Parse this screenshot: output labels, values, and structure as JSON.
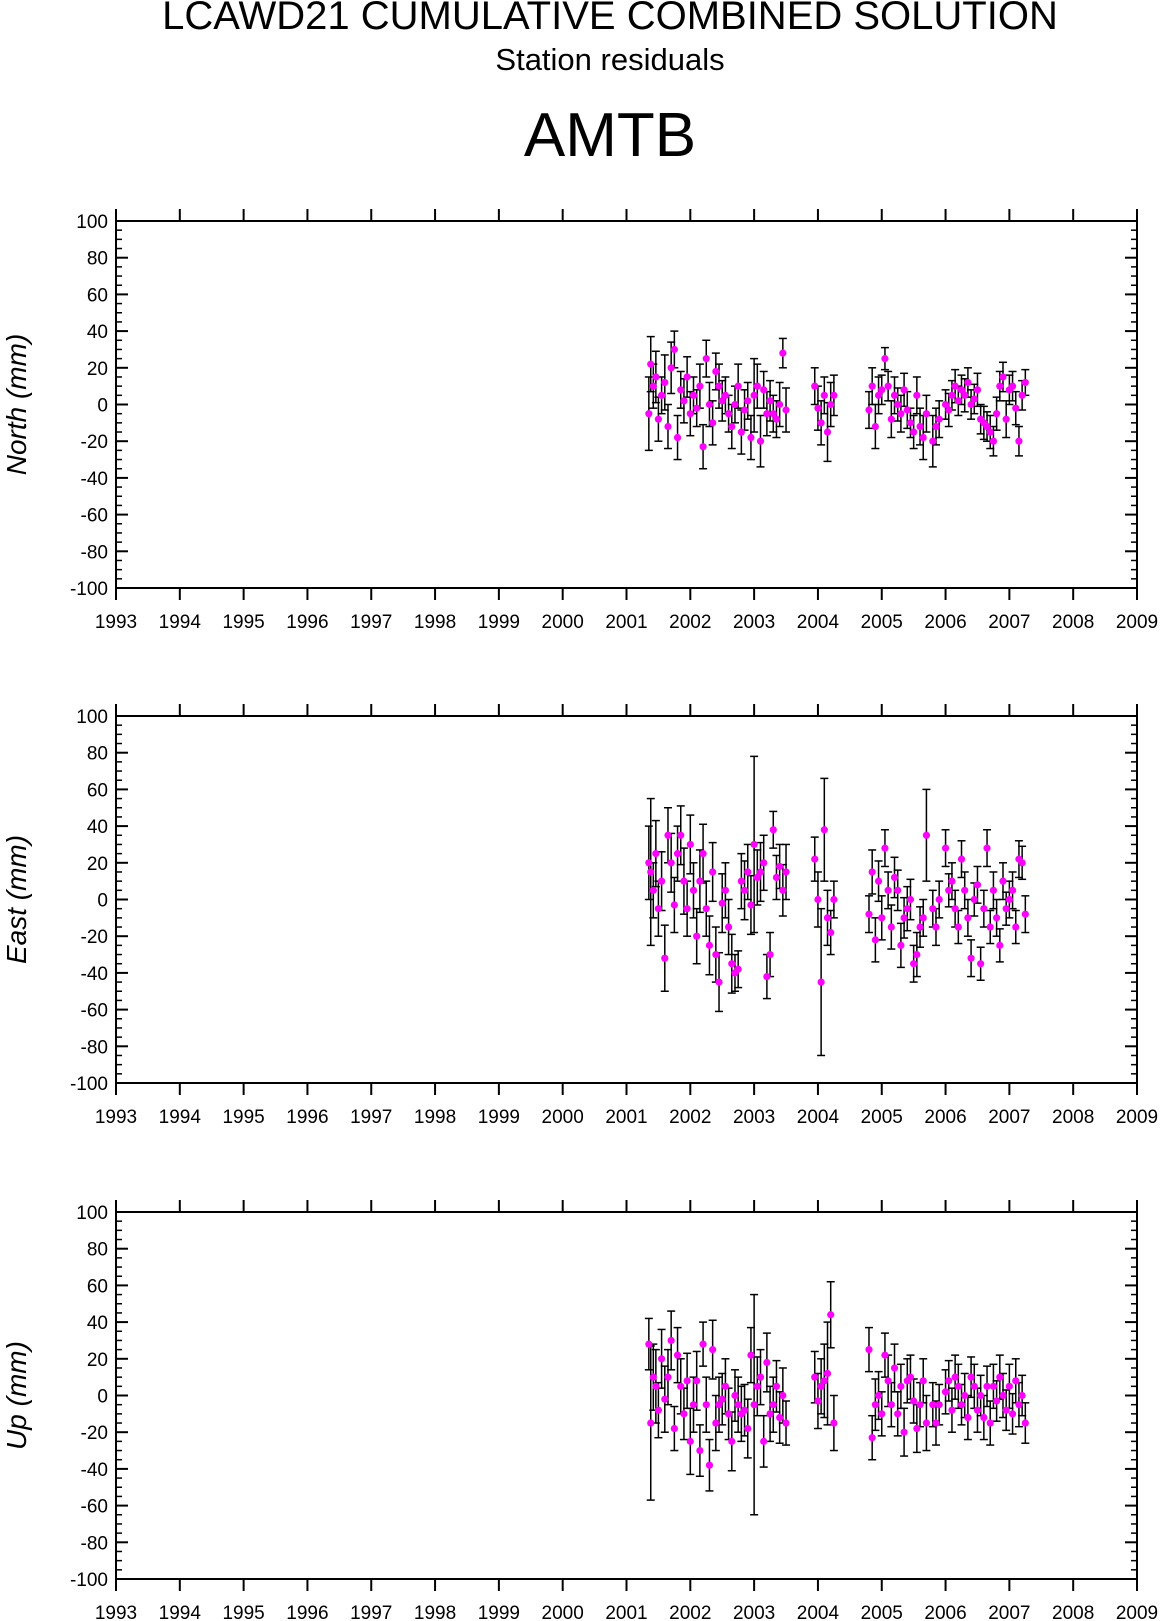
{
  "header": {
    "title": "LCAWD21 CUMULATIVE COMBINED SOLUTION",
    "subtitle": "Station residuals",
    "station": "AMTB"
  },
  "colors": {
    "point": "#ff00ff",
    "axis": "#000000",
    "errorbar": "#000000"
  },
  "chart_data": [
    {
      "type": "scatter",
      "ylabel": "North (mm)",
      "xlim": [
        1993,
        2009
      ],
      "ylim": [
        -100,
        100
      ],
      "xticks": [
        "1993",
        "1994",
        "1995",
        "1996",
        "1997",
        "1998",
        "1999",
        "2000",
        "2001",
        "2002",
        "2003",
        "2004",
        "2005",
        "2006",
        "2007",
        "2008",
        "2009"
      ],
      "yticks": [
        "100",
        "80",
        "60",
        "40",
        "20",
        "0",
        "-20",
        "-40",
        "-60",
        "-80",
        "-100"
      ],
      "series": [
        {
          "error_bars": true,
          "x": [
            2001.35,
            2001.38,
            2001.42,
            2001.46,
            2001.5,
            2001.55,
            2001.6,
            2001.65,
            2001.7,
            2001.75,
            2001.8,
            2001.85,
            2001.9,
            2001.95,
            2002.0,
            2002.05,
            2002.1,
            2002.15,
            2002.2,
            2002.25,
            2002.3,
            2002.35,
            2002.4,
            2002.45,
            2002.5,
            2002.55,
            2002.6,
            2002.65,
            2002.7,
            2002.75,
            2002.8,
            2002.85,
            2002.9,
            2002.95,
            2003.0,
            2003.05,
            2003.1,
            2003.15,
            2003.2,
            2003.25,
            2003.3,
            2003.35,
            2003.4,
            2003.45,
            2003.5,
            2003.95,
            2004.0,
            2004.05,
            2004.1,
            2004.15,
            2004.2,
            2004.25,
            2004.8,
            2004.85,
            2004.9,
            2004.95,
            2005.0,
            2005.05,
            2005.1,
            2005.15,
            2005.2,
            2005.25,
            2005.3,
            2005.35,
            2005.4,
            2005.45,
            2005.5,
            2005.55,
            2005.6,
            2005.65,
            2005.7,
            2005.8,
            2005.85,
            2005.9,
            2006.0,
            2006.05,
            2006.1,
            2006.15,
            2006.2,
            2006.25,
            2006.3,
            2006.35,
            2006.4,
            2006.45,
            2006.5,
            2006.55,
            2006.6,
            2006.65,
            2006.7,
            2006.75,
            2006.8,
            2006.85,
            2006.9,
            2006.95,
            2007.0,
            2007.05,
            2007.1,
            2007.15,
            2007.2,
            2007.25
          ],
          "y": [
            -5,
            22,
            10,
            15,
            -8,
            5,
            12,
            -12,
            20,
            30,
            -18,
            8,
            2,
            15,
            -5,
            5,
            -2,
            10,
            -23,
            25,
            0,
            -10,
            18,
            10,
            2,
            5,
            -5,
            -12,
            0,
            10,
            -15,
            -3,
            2,
            -18,
            5,
            10,
            -20,
            8,
            -5,
            2,
            -5,
            -8,
            0,
            28,
            -3,
            10,
            -2,
            -10,
            5,
            -15,
            0,
            5,
            -3,
            10,
            -12,
            5,
            8,
            25,
            10,
            -8,
            5,
            0,
            -5,
            8,
            -3,
            -10,
            -15,
            5,
            -12,
            -18,
            -5,
            -20,
            -12,
            -8,
            0,
            -3,
            5,
            10,
            2,
            8,
            5,
            12,
            0,
            3,
            8,
            -8,
            -10,
            -12,
            -15,
            -20,
            -5,
            10,
            15,
            -8,
            8,
            10,
            -2,
            -20,
            5,
            12
          ],
          "err": [
            20,
            15,
            12,
            14,
            12,
            10,
            15,
            12,
            14,
            10,
            12,
            10,
            12,
            11,
            12,
            10,
            10,
            12,
            12,
            10,
            12,
            12,
            10,
            12,
            11,
            10,
            10,
            12,
            10,
            12,
            12,
            11,
            10,
            12,
            20,
            12,
            14,
            10,
            12,
            11,
            10,
            10,
            12,
            8,
            12,
            10,
            12,
            12,
            10,
            16,
            12,
            11,
            10,
            10,
            12,
            10,
            8,
            6,
            8,
            10,
            10,
            9,
            10,
            9,
            10,
            8,
            9,
            10,
            10,
            12,
            10,
            14,
            10,
            10,
            8,
            9,
            8,
            9,
            8,
            8,
            9,
            8,
            8,
            8,
            9,
            8,
            9,
            8,
            9,
            8,
            9,
            8,
            8,
            10,
            8,
            8,
            9,
            8,
            8,
            7
          ]
        }
      ]
    },
    {
      "type": "scatter",
      "ylabel": "East (mm)",
      "xlim": [
        1993,
        2009
      ],
      "ylim": [
        -100,
        100
      ],
      "xticks": [
        "1993",
        "1994",
        "1995",
        "1996",
        "1997",
        "1998",
        "1999",
        "2000",
        "2001",
        "2002",
        "2003",
        "2004",
        "2005",
        "2006",
        "2007",
        "2008",
        "2009"
      ],
      "yticks": [
        "100",
        "80",
        "60",
        "40",
        "20",
        "0",
        "-20",
        "-40",
        "-60",
        "-80",
        "-100"
      ],
      "series": [
        {
          "error_bars": true,
          "x": [
            2001.35,
            2001.38,
            2001.42,
            2001.46,
            2001.5,
            2001.55,
            2001.6,
            2001.65,
            2001.7,
            2001.75,
            2001.8,
            2001.85,
            2001.9,
            2001.95,
            2002.0,
            2002.05,
            2002.1,
            2002.15,
            2002.2,
            2002.25,
            2002.3,
            2002.35,
            2002.4,
            2002.45,
            2002.5,
            2002.55,
            2002.6,
            2002.65,
            2002.7,
            2002.75,
            2002.8,
            2002.85,
            2002.9,
            2002.95,
            2003.0,
            2003.05,
            2003.1,
            2003.15,
            2003.2,
            2003.25,
            2003.3,
            2003.35,
            2003.4,
            2003.45,
            2003.5,
            2003.95,
            2004.0,
            2004.05,
            2004.1,
            2004.15,
            2004.2,
            2004.25,
            2004.8,
            2004.85,
            2004.9,
            2004.95,
            2005.0,
            2005.05,
            2005.1,
            2005.15,
            2005.2,
            2005.25,
            2005.3,
            2005.35,
            2005.4,
            2005.45,
            2005.5,
            2005.55,
            2005.6,
            2005.65,
            2005.7,
            2005.8,
            2005.85,
            2005.9,
            2006.0,
            2006.05,
            2006.1,
            2006.15,
            2006.2,
            2006.25,
            2006.3,
            2006.35,
            2006.4,
            2006.45,
            2006.5,
            2006.55,
            2006.6,
            2006.65,
            2006.7,
            2006.75,
            2006.8,
            2006.85,
            2006.9,
            2006.95,
            2007.0,
            2007.05,
            2007.1,
            2007.15,
            2007.2,
            2007.25
          ],
          "y": [
            20,
            15,
            5,
            25,
            -5,
            10,
            -32,
            35,
            20,
            -3,
            25,
            35,
            10,
            -5,
            30,
            5,
            -20,
            10,
            25,
            -5,
            -25,
            15,
            -30,
            -45,
            -2,
            5,
            -15,
            -35,
            -40,
            -38,
            10,
            5,
            15,
            -3,
            30,
            12,
            15,
            20,
            -42,
            -30,
            38,
            12,
            18,
            5,
            15,
            22,
            0,
            -45,
            38,
            -10,
            -18,
            0,
            -8,
            15,
            -22,
            10,
            -10,
            28,
            5,
            -15,
            12,
            5,
            -25,
            -10,
            -5,
            0,
            -35,
            -30,
            -15,
            -10,
            35,
            -5,
            -15,
            0,
            28,
            5,
            10,
            -5,
            -15,
            22,
            5,
            -10,
            -32,
            0,
            8,
            -35,
            -5,
            28,
            -15,
            5,
            -10,
            -25,
            10,
            -5,
            0,
            5,
            -15,
            22,
            20,
            -8
          ],
          "err": [
            20,
            40,
            15,
            18,
            15,
            16,
            18,
            15,
            16,
            15,
            15,
            16,
            18,
            15,
            16,
            15,
            15,
            17,
            16,
            15,
            16,
            16,
            15,
            16,
            16,
            15,
            15,
            16,
            10,
            10,
            15,
            16,
            15,
            16,
            48,
            15,
            16,
            15,
            12,
            12,
            10,
            12,
            12,
            14,
            15,
            12,
            15,
            40,
            28,
            15,
            12,
            10,
            10,
            12,
            12,
            11,
            12,
            10,
            10,
            12,
            11,
            11,
            12,
            11,
            12,
            11,
            10,
            12,
            11,
            10,
            25,
            10,
            10,
            10,
            10,
            9,
            10,
            10,
            9,
            10,
            10,
            10,
            10,
            9,
            10,
            9,
            10,
            10,
            9,
            10,
            10,
            9,
            10,
            9,
            10,
            10,
            9,
            10,
            9,
            10
          ]
        }
      ]
    },
    {
      "type": "scatter",
      "ylabel": "Up (mm)",
      "xlim": [
        1993,
        2009
      ],
      "ylim": [
        -100,
        100
      ],
      "xticks": [
        "1993",
        "1994",
        "1995",
        "1996",
        "1997",
        "1998",
        "1999",
        "2000",
        "2001",
        "2002",
        "2003",
        "2004",
        "2005",
        "2006",
        "2007",
        "2008",
        "2009"
      ],
      "yticks": [
        "100",
        "80",
        "60",
        "40",
        "20",
        "0",
        "-20",
        "-40",
        "-60",
        "-80",
        "-100"
      ],
      "series": [
        {
          "error_bars": true,
          "x": [
            2001.35,
            2001.38,
            2001.42,
            2001.46,
            2001.5,
            2001.55,
            2001.6,
            2001.65,
            2001.7,
            2001.75,
            2001.8,
            2001.85,
            2001.9,
            2001.95,
            2002.0,
            2002.05,
            2002.1,
            2002.15,
            2002.2,
            2002.25,
            2002.3,
            2002.35,
            2002.4,
            2002.45,
            2002.5,
            2002.55,
            2002.6,
            2002.65,
            2002.7,
            2002.75,
            2002.8,
            2002.85,
            2002.9,
            2002.95,
            2003.0,
            2003.05,
            2003.1,
            2003.15,
            2003.2,
            2003.25,
            2003.3,
            2003.35,
            2003.4,
            2003.45,
            2003.5,
            2003.95,
            2004.0,
            2004.05,
            2004.1,
            2004.15,
            2004.2,
            2004.25,
            2004.8,
            2004.85,
            2004.9,
            2004.95,
            2005.0,
            2005.05,
            2005.1,
            2005.15,
            2005.2,
            2005.25,
            2005.3,
            2005.35,
            2005.4,
            2005.45,
            2005.5,
            2005.55,
            2005.6,
            2005.65,
            2005.7,
            2005.8,
            2005.85,
            2005.9,
            2006.0,
            2006.05,
            2006.1,
            2006.15,
            2006.2,
            2006.25,
            2006.3,
            2006.35,
            2006.4,
            2006.45,
            2006.5,
            2006.55,
            2006.6,
            2006.65,
            2006.7,
            2006.75,
            2006.8,
            2006.85,
            2006.9,
            2006.95,
            2007.0,
            2007.05,
            2007.1,
            2007.15,
            2007.2,
            2007.25
          ],
          "y": [
            28,
            -15,
            10,
            5,
            -8,
            20,
            -2,
            10,
            30,
            -18,
            22,
            5,
            -10,
            8,
            -25,
            -5,
            8,
            -30,
            28,
            -5,
            -38,
            25,
            -15,
            -5,
            -2,
            5,
            -10,
            -25,
            0,
            -5,
            -10,
            -8,
            -18,
            22,
            -5,
            5,
            10,
            -25,
            18,
            -10,
            -5,
            5,
            -12,
            0,
            -15,
            10,
            -3,
            5,
            8,
            12,
            44,
            -15,
            25,
            -23,
            -5,
            0,
            -10,
            22,
            8,
            -5,
            15,
            -10,
            5,
            -20,
            8,
            10,
            -3,
            -18,
            -5,
            8,
            -15,
            -5,
            -15,
            -5,
            2,
            8,
            -8,
            10,
            5,
            -5,
            0,
            -12,
            10,
            5,
            -8,
            0,
            -12,
            5,
            -15,
            5,
            -3,
            10,
            0,
            -8,
            5,
            -10,
            8,
            -5,
            0,
            -15
          ],
          "err": [
            14,
            42,
            18,
            20,
            15,
            16,
            18,
            15,
            16,
            12,
            15,
            15,
            14,
            15,
            18,
            15,
            16,
            14,
            12,
            15,
            14,
            16,
            15,
            15,
            14,
            15,
            14,
            16,
            14,
            15,
            15,
            14,
            16,
            15,
            60,
            16,
            15,
            14,
            16,
            15,
            15,
            14,
            14,
            15,
            12,
            14,
            15,
            15,
            20,
            28,
            18,
            15,
            12,
            12,
            14,
            13,
            12,
            12,
            14,
            12,
            13,
            12,
            12,
            13,
            12,
            12,
            12,
            13,
            12,
            12,
            15,
            12,
            12,
            11,
            12,
            11,
            12,
            12,
            12,
            11,
            12,
            12,
            11,
            12,
            12,
            11,
            12,
            11,
            12,
            12,
            11,
            12,
            12,
            11,
            12,
            11,
            12,
            12,
            11,
            11
          ]
        }
      ]
    }
  ]
}
